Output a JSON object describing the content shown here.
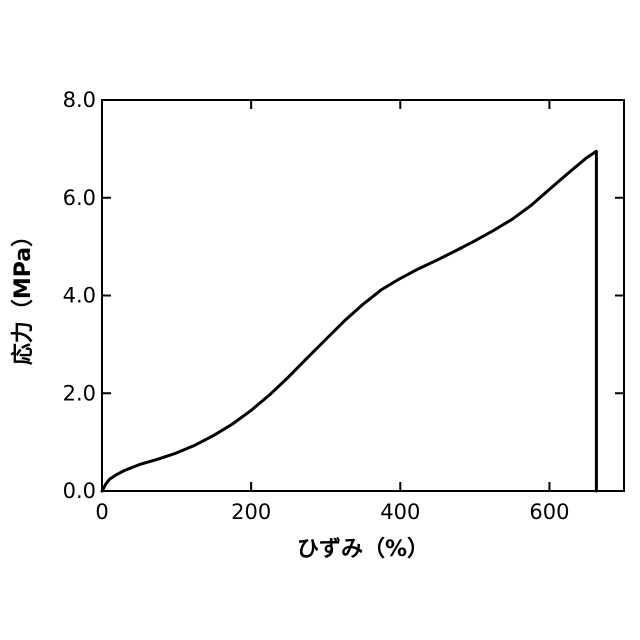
{
  "chart_data": {
    "type": "line",
    "title": "",
    "xlabel": "ひずみ（%）",
    "ylabel": "応力（MPa）",
    "xlim": [
      0,
      700
    ],
    "ylim": [
      0,
      8.0
    ],
    "x_ticks": [
      0,
      200,
      400,
      600
    ],
    "x_tick_labels": [
      "0",
      "200",
      "400",
      "600"
    ],
    "y_ticks": [
      0,
      2,
      4,
      6,
      8
    ],
    "y_tick_labels": [
      "0.0",
      "2.0",
      "4.0",
      "6.0",
      "8.0"
    ],
    "grid": false,
    "legend": "none",
    "line_color": "#000000",
    "series": [
      {
        "x": [
          0,
          5,
          10,
          20,
          30,
          50,
          75,
          100,
          125,
          150,
          175,
          200,
          225,
          250,
          275,
          300,
          325,
          350,
          375,
          400,
          425,
          450,
          475,
          500,
          525,
          550,
          575,
          600,
          625,
          650,
          663,
          663
        ],
        "y": [
          0.0,
          0.14,
          0.24,
          0.34,
          0.42,
          0.54,
          0.65,
          0.78,
          0.94,
          1.14,
          1.37,
          1.65,
          1.97,
          2.33,
          2.72,
          3.1,
          3.48,
          3.82,
          4.12,
          4.35,
          4.55,
          4.73,
          4.92,
          5.12,
          5.33,
          5.56,
          5.84,
          6.17,
          6.5,
          6.82,
          6.95,
          0.0
        ]
      }
    ]
  }
}
